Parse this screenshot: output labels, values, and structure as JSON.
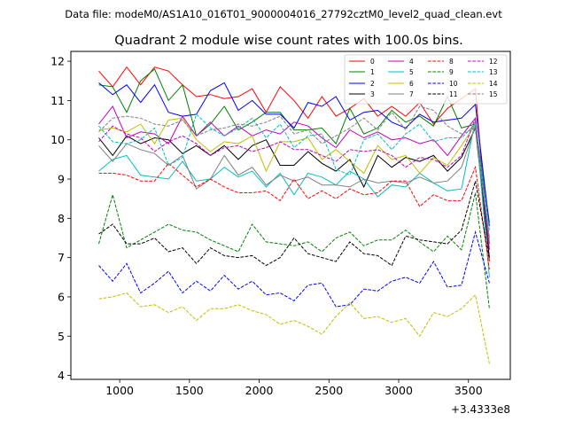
{
  "header": {
    "file_label": "Data file: modeM0/AS1A10_016T01_9000004016_27792cztM0_level2_quad_clean.evt"
  },
  "chart_data": {
    "type": "line",
    "title": "Quadrant 2 module wise count rates with 100.0s bins.",
    "xlabel": "",
    "ylabel": "",
    "offset_label": "+3.4333e8",
    "xlim": [
      650,
      3800
    ],
    "ylim": [
      3.9,
      12.25
    ],
    "xticks": [
      1000,
      1500,
      2000,
      2500,
      3000,
      3500
    ],
    "yticks": [
      4,
      5,
      6,
      7,
      8,
      9,
      10,
      11,
      12
    ],
    "legend_position": "top-right",
    "x": [
      850,
      950,
      1050,
      1150,
      1250,
      1350,
      1450,
      1550,
      1650,
      1750,
      1850,
      1950,
      2050,
      2150,
      2250,
      2350,
      2450,
      2550,
      2650,
      2750,
      2850,
      2950,
      3050,
      3150,
      3250,
      3350,
      3450,
      3550,
      3650
    ],
    "series": [
      {
        "name": "0",
        "color": "#ff0000",
        "dash": false,
        "values": [
          11.75,
          11.35,
          11.85,
          11.4,
          11.85,
          11.75,
          11.4,
          11.1,
          11.15,
          11.05,
          11.1,
          11.3,
          10.7,
          11.35,
          11.0,
          10.55,
          11.1,
          10.6,
          10.8,
          11.05,
          10.6,
          10.85,
          10.6,
          10.95,
          10.4,
          10.8,
          11.05,
          11.3,
          6.9
        ]
      },
      {
        "name": "1",
        "color": "#008000",
        "dash": false,
        "values": [
          11.4,
          11.35,
          10.7,
          11.5,
          11.8,
          11.0,
          11.4,
          10.1,
          10.4,
          10.85,
          10.25,
          10.45,
          10.7,
          10.7,
          10.25,
          10.25,
          10.3,
          9.9,
          10.8,
          10.15,
          10.3,
          10.75,
          10.45,
          10.6,
          10.35,
          11.1,
          10.3,
          10.4,
          7.9
        ]
      },
      {
        "name": "2",
        "color": "#0000ff",
        "dash": false,
        "values": [
          11.45,
          11.15,
          11.4,
          10.95,
          11.4,
          10.7,
          10.6,
          10.65,
          11.25,
          11.45,
          10.75,
          11.0,
          10.65,
          10.65,
          10.3,
          10.95,
          10.85,
          11.1,
          10.5,
          10.7,
          10.75,
          10.45,
          10.3,
          10.65,
          10.45,
          10.5,
          10.55,
          10.9,
          7.8
        ]
      },
      {
        "name": "3",
        "color": "#000000",
        "dash": false,
        "values": [
          10.05,
          9.6,
          10.1,
          9.9,
          10.05,
          10.0,
          9.65,
          9.85,
          9.6,
          9.85,
          9.5,
          9.85,
          10.0,
          9.35,
          9.35,
          9.7,
          9.4,
          9.2,
          9.5,
          8.8,
          9.6,
          9.3,
          9.55,
          9.45,
          9.6,
          9.2,
          9.55,
          10.3,
          7.0
        ]
      },
      {
        "name": "4",
        "color": "#bf00bf",
        "dash": false,
        "values": [
          10.4,
          10.85,
          10.05,
          10.2,
          10.15,
          9.9,
          10.6,
          10.1,
          10.45,
          10.1,
          10.35,
          10.1,
          10.25,
          10.15,
          10.45,
          10.35,
          10.05,
          9.8,
          10.25,
          10.05,
          10.2,
          10.0,
          10.05,
          9.9,
          10.0,
          9.6,
          10.1,
          10.55,
          7.2
        ]
      },
      {
        "name": "5",
        "color": "#00bfbf",
        "dash": false,
        "values": [
          9.2,
          9.5,
          9.6,
          9.1,
          9.05,
          9.0,
          9.45,
          8.95,
          9.0,
          9.3,
          9.05,
          9.2,
          8.8,
          9.15,
          8.6,
          9.15,
          9.05,
          8.85,
          9.2,
          9.0,
          8.55,
          8.85,
          8.8,
          9.15,
          8.9,
          8.7,
          8.75,
          10.5,
          6.5
        ]
      },
      {
        "name": "6",
        "color": "#bfbf00",
        "dash": false,
        "values": [
          10.25,
          10.3,
          10.2,
          10.4,
          9.9,
          10.5,
          10.55,
          10.0,
          9.7,
          9.95,
          9.9,
          10.1,
          9.2,
          9.95,
          9.95,
          10.05,
          9.5,
          9.75,
          9.45,
          9.15,
          9.85,
          9.5,
          9.6,
          9.15,
          9.55,
          9.35,
          9.85,
          10.4,
          7.4
        ]
      },
      {
        "name": "7",
        "color": "#808080",
        "dash": false,
        "values": [
          9.85,
          9.45,
          9.9,
          9.75,
          9.65,
          9.35,
          9.6,
          8.75,
          9.0,
          9.6,
          9.1,
          9.3,
          8.85,
          9.1,
          8.95,
          9.05,
          8.85,
          8.85,
          8.8,
          9.0,
          8.9,
          8.95,
          8.9,
          9.05,
          8.9,
          8.95,
          9.3,
          10.35,
          7.5
        ]
      },
      {
        "name": "8",
        "color": "#ff0000",
        "dash": true,
        "values": [
          9.15,
          9.15,
          9.1,
          8.95,
          8.95,
          9.4,
          9.1,
          8.8,
          9.0,
          8.8,
          8.65,
          8.65,
          8.7,
          8.45,
          9.0,
          8.5,
          8.7,
          8.5,
          8.75,
          8.6,
          8.65,
          8.95,
          8.95,
          8.3,
          8.6,
          8.45,
          8.45,
          9.3,
          6.7
        ]
      },
      {
        "name": "9",
        "color": "#008000",
        "dash": true,
        "values": [
          7.35,
          8.6,
          7.25,
          7.45,
          7.65,
          7.85,
          7.7,
          7.65,
          7.45,
          7.3,
          7.15,
          7.85,
          7.4,
          7.35,
          7.3,
          7.4,
          7.15,
          7.5,
          7.65,
          7.3,
          7.45,
          7.45,
          7.7,
          7.4,
          7.15,
          7.55,
          7.2,
          8.65,
          5.7
        ]
      },
      {
        "name": "10",
        "color": "#0000ff",
        "dash": true,
        "values": [
          6.8,
          6.4,
          6.85,
          6.1,
          6.35,
          6.65,
          6.1,
          6.4,
          6.15,
          6.55,
          6.2,
          6.4,
          6.05,
          6.1,
          5.9,
          6.3,
          6.35,
          5.75,
          5.8,
          6.2,
          6.15,
          6.4,
          6.5,
          6.35,
          6.9,
          6.25,
          6.3,
          7.65,
          6.35
        ]
      },
      {
        "name": "11",
        "color": "#000000",
        "dash": true,
        "values": [
          7.6,
          7.85,
          7.35,
          7.35,
          7.5,
          7.15,
          7.25,
          6.85,
          7.25,
          7.05,
          7.0,
          7.05,
          6.8,
          7.0,
          7.5,
          7.1,
          7.0,
          6.9,
          7.4,
          7.1,
          7.05,
          6.8,
          7.55,
          7.45,
          7.4,
          7.35,
          7.7,
          8.95,
          6.95
        ]
      },
      {
        "name": "12",
        "color": "#bf00bf",
        "dash": true,
        "values": [
          9.95,
          10.35,
          10.15,
          10.05,
          9.7,
          9.95,
          10.1,
          9.9,
          9.6,
          9.8,
          9.85,
          9.7,
          9.8,
          9.95,
          9.75,
          9.75,
          9.6,
          9.45,
          9.75,
          9.7,
          9.75,
          9.6,
          9.3,
          9.55,
          9.5,
          9.3,
          9.6,
          10.55,
          7.35
        ]
      },
      {
        "name": "13",
        "color": "#00bfbf",
        "dash": true,
        "values": [
          10.35,
          9.95,
          9.9,
          10.0,
          10.3,
          9.35,
          9.55,
          10.65,
          10.3,
          10.1,
          10.3,
          10.55,
          10.05,
          10.4,
          9.8,
          10.1,
          10.15,
          9.25,
          9.1,
          10.0,
          10.15,
          9.75,
          10.15,
          10.4,
          9.95,
          10.05,
          10.05,
          10.4,
          7.7
        ]
      },
      {
        "name": "14",
        "color": "#bfbf00",
        "dash": true,
        "values": [
          5.95,
          6.0,
          6.1,
          5.75,
          5.8,
          5.6,
          5.75,
          5.4,
          5.7,
          5.7,
          5.8,
          5.65,
          5.55,
          5.3,
          5.4,
          5.25,
          5.05,
          5.5,
          5.85,
          5.45,
          5.5,
          5.35,
          5.45,
          5.0,
          5.6,
          5.5,
          5.7,
          6.05,
          4.3
        ]
      },
      {
        "name": "15",
        "color": "#808080",
        "dash": true,
        "values": [
          10.2,
          10.55,
          10.6,
          10.55,
          10.4,
          10.35,
          10.5,
          10.1,
          10.25,
          10.3,
          10.4,
          10.35,
          10.45,
          10.6,
          10.15,
          10.25,
          9.9,
          10.1,
          10.3,
          10.55,
          10.25,
          10.7,
          10.25,
          10.85,
          10.75,
          10.35,
          10.15,
          10.3,
          7.4
        ]
      }
    ]
  }
}
